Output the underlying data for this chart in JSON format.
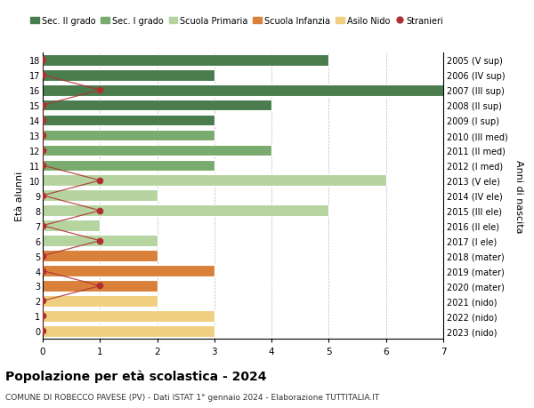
{
  "ages": [
    18,
    17,
    16,
    15,
    14,
    13,
    12,
    11,
    10,
    9,
    8,
    7,
    6,
    5,
    4,
    3,
    2,
    1,
    0
  ],
  "right_labels": [
    "2005 (V sup)",
    "2006 (IV sup)",
    "2007 (III sup)",
    "2008 (II sup)",
    "2009 (I sup)",
    "2010 (III med)",
    "2011 (II med)",
    "2012 (I med)",
    "2013 (V ele)",
    "2014 (IV ele)",
    "2015 (III ele)",
    "2016 (II ele)",
    "2017 (I ele)",
    "2018 (mater)",
    "2019 (mater)",
    "2020 (mater)",
    "2021 (nido)",
    "2022 (nido)",
    "2023 (nido)"
  ],
  "bar_values": [
    5,
    3,
    7,
    4,
    3,
    3,
    4,
    3,
    6,
    2,
    5,
    1,
    2,
    2,
    3,
    2,
    2,
    3,
    3
  ],
  "bar_colors": [
    "#4a7c4e",
    "#4a7c4e",
    "#4a7c4e",
    "#4a7c4e",
    "#4a7c4e",
    "#7aab6e",
    "#7aab6e",
    "#7aab6e",
    "#b5d4a0",
    "#b5d4a0",
    "#b5d4a0",
    "#b5d4a0",
    "#b5d4a0",
    "#d9813a",
    "#d9813a",
    "#d9813a",
    "#f0d080",
    "#f0d080",
    "#f0d080"
  ],
  "stranieri_x_by_age": {
    "18": 0,
    "17": 0,
    "16": 1,
    "15": 0,
    "14": 0,
    "13": 0,
    "12": 0,
    "11": 0,
    "10": 1,
    "9": 0,
    "8": 1,
    "7": 0,
    "6": 1,
    "5": 0,
    "4": 0,
    "3": 1,
    "2": 0,
    "1": 0,
    "0": 0
  },
  "title": "Popolazione per età scolastica - 2024",
  "subtitle": "COMUNE DI ROBECCO PAVESE (PV) - Dati ISTAT 1° gennaio 2024 - Elaborazione TUTTITALIA.IT",
  "xlabel_left": "Età alunni",
  "xlabel_right": "Anni di nascita",
  "legend_labels": [
    "Sec. II grado",
    "Sec. I grado",
    "Scuola Primaria",
    "Scuola Infanzia",
    "Asilo Nido",
    "Stranieri"
  ],
  "legend_colors": [
    "#4a7c4e",
    "#7aab6e",
    "#b5d4a0",
    "#d9813a",
    "#f0d080",
    "#c0392b"
  ],
  "color_stranieri": "#b03030",
  "xlim": [
    0,
    7
  ],
  "background_color": "#ffffff"
}
